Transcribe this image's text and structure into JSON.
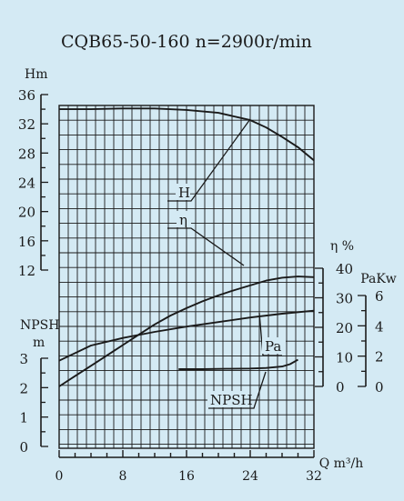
{
  "chart_data": {
    "type": "line",
    "title": "CQB65-50-160  n=2900r/min",
    "x_axis": {
      "label": "Q m³/h",
      "range": [
        0,
        32
      ],
      "ticks": [
        "0",
        "8",
        "16",
        "24",
        "32"
      ]
    },
    "axes": {
      "head": {
        "label": "Hm",
        "range": [
          12,
          36
        ],
        "ticks": [
          "12",
          "16",
          "20",
          "24",
          "28",
          "32",
          "36"
        ]
      },
      "npsh": {
        "label": "NPSH\nm",
        "label_lines": [
          "NPSH",
          "m"
        ],
        "range": [
          0,
          3
        ],
        "ticks": [
          "0",
          "1",
          "2",
          "3"
        ]
      },
      "efficiency": {
        "label": "η %",
        "range": [
          0,
          40
        ],
        "ticks": [
          "0",
          "10",
          "20",
          "30",
          "40"
        ]
      },
      "power": {
        "label": "PaKw",
        "range": [
          0,
          6
        ],
        "ticks": [
          "0",
          "2",
          "4",
          "6"
        ]
      }
    },
    "grid": true,
    "series": [
      {
        "name": "H",
        "axis": "head",
        "x": [
          0,
          4,
          8,
          12,
          16,
          20,
          24,
          26,
          28,
          30,
          32
        ],
        "y": [
          34,
          34,
          34.1,
          34.1,
          33.9,
          33.5,
          32.5,
          31.5,
          30.2,
          28.8,
          27
        ]
      },
      {
        "name": "η",
        "axis": "efficiency",
        "x": [
          0,
          2,
          4,
          6,
          8,
          10,
          12,
          14,
          16,
          18,
          20,
          22,
          24,
          26,
          28,
          30,
          32
        ],
        "y": [
          0,
          3.5,
          7,
          10.5,
          14,
          17.5,
          21,
          24,
          26.5,
          28.8,
          30.8,
          32.6,
          34.2,
          35.8,
          36.8,
          37.2,
          37
        ]
      },
      {
        "name": "Pa",
        "axis": "power",
        "x": [
          0,
          4,
          8,
          12,
          16,
          20,
          24,
          28,
          32
        ],
        "y": [
          1.7,
          2.7,
          3.2,
          3.6,
          3.95,
          4.25,
          4.55,
          4.8,
          5
        ]
      },
      {
        "name": "NPSH",
        "axis": "npsh",
        "x": [
          15,
          18,
          21,
          24,
          26,
          28,
          29,
          30
        ],
        "y": [
          2.63,
          2.63,
          2.64,
          2.65,
          2.67,
          2.72,
          2.8,
          2.95
        ]
      }
    ],
    "curve_labels": [
      "H",
      "η",
      "Pa",
      "NPSH"
    ]
  },
  "colors": {
    "background": "#d4eaf4",
    "ink": "#1a1a1a"
  }
}
